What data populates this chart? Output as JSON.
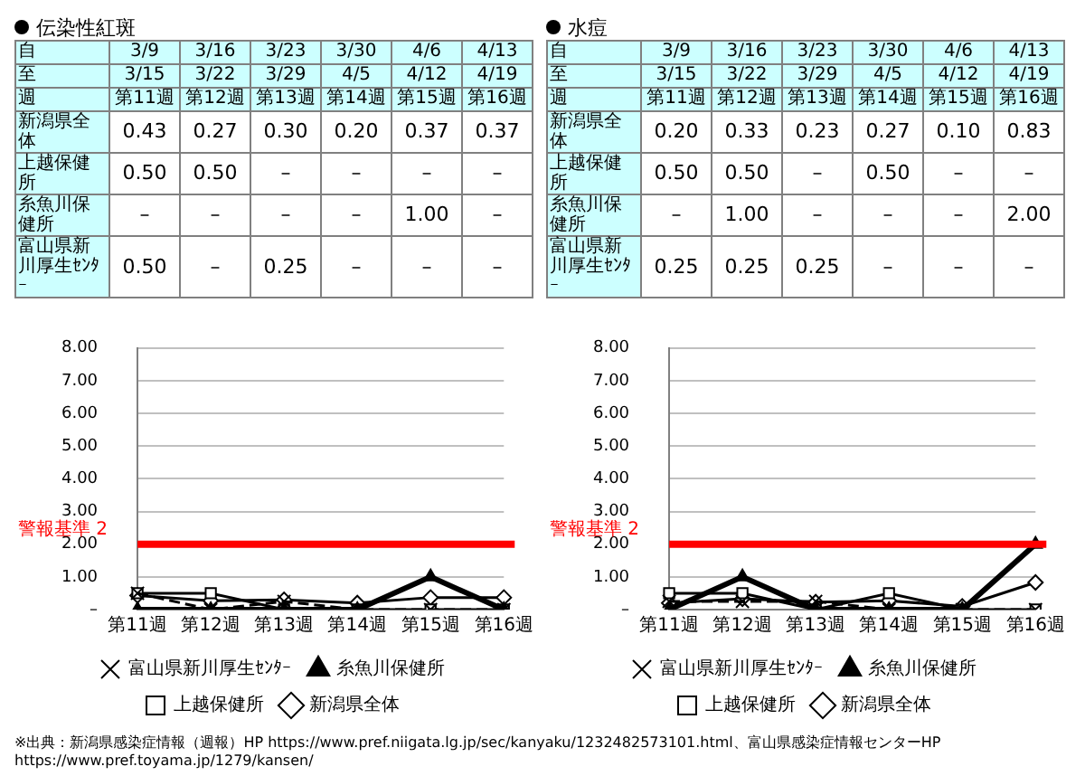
{
  "chart_data": [
    {
      "type": "line",
      "title": "伝染性紅斑",
      "categories": [
        "第11週",
        "第12週",
        "第13週",
        "第14週",
        "第15週",
        "第16週"
      ],
      "annotations": [
        "自",
        "3/9",
        "3/16",
        "3/23",
        "3/30",
        "4/6",
        "4/13",
        "至",
        "3/15",
        "3/22",
        "3/29",
        "4/5",
        "4/12",
        "4/19",
        "週",
        "第11週",
        "第12週",
        "第13週",
        "第14週",
        "第15週",
        "第16週"
      ],
      "series": [
        {
          "name": "新潟県全体",
          "color": "#000000",
          "marker": "diamond",
          "line_style": "solid",
          "values": [
            0.43,
            0.27,
            0.3,
            0.2,
            0.37,
            0.37
          ],
          "value_labels": [
            "0.43",
            "0.27",
            "0.30",
            "0.20",
            "0.37",
            "0.37"
          ]
        },
        {
          "name": "上越保健所",
          "color": "#000000",
          "marker": "square",
          "line_style": "solid",
          "values": [
            0.5,
            0.5,
            0,
            0,
            0,
            0
          ],
          "value_labels": [
            "0.50",
            "0.50",
            "–",
            "–",
            "–",
            "–"
          ]
        },
        {
          "name": "糸魚川保健所",
          "color": "#000000",
          "marker": "triangle",
          "line_style": "solid",
          "values": [
            0,
            0,
            0,
            0,
            1.0,
            0
          ],
          "value_labels": [
            "–",
            "–",
            "–",
            "–",
            "1.00",
            "–"
          ]
        },
        {
          "name": "富山県新川厚生ｾﾝﾀｰ",
          "color": "#000000",
          "marker": "cross",
          "line_style": "dashed",
          "values": [
            0.5,
            0,
            0.25,
            0,
            0,
            0
          ],
          "value_labels": [
            "0.50",
            "–",
            "0.25",
            "–",
            "–",
            "–"
          ]
        }
      ],
      "ylim": [
        0,
        8
      ],
      "yticks": [
        {
          "value": 0,
          "label": "–"
        },
        {
          "value": 1,
          "label": "1.00"
        },
        {
          "value": 2,
          "label": "2.00"
        },
        {
          "value": 3,
          "label": "3.00"
        },
        {
          "value": 4,
          "label": "4.00"
        },
        {
          "value": 5,
          "label": "5.00"
        },
        {
          "value": 6,
          "label": "6.00"
        },
        {
          "value": 7,
          "label": "7.00"
        },
        {
          "value": 8,
          "label": "8.00"
        }
      ],
      "ref_lines": [
        {
          "axis": "y",
          "value": 2,
          "label": "警報基準 2",
          "color": "#ff0000"
        }
      ],
      "grid": "y",
      "legend": "bottom"
    },
    {
      "type": "line",
      "title": "水痘",
      "categories": [
        "第11週",
        "第12週",
        "第13週",
        "第14週",
        "第15週",
        "第16週"
      ],
      "annotations": [
        "自",
        "3/9",
        "3/16",
        "3/23",
        "3/30",
        "4/6",
        "4/13",
        "至",
        "3/15",
        "3/22",
        "3/29",
        "4/5",
        "4/12",
        "4/19",
        "週",
        "第11週",
        "第12週",
        "第13週",
        "第14週",
        "第15週",
        "第16週",
        "※出典：新潟県感染症情報（週報）HP https://www.pref.niigata.lg.jp/sec/kanyaku/1232482573101.html、富山県感染症情報センターHP https://www.pref.toyama.jp/1279/kansen/"
      ],
      "series": [
        {
          "name": "新潟県全体",
          "color": "#000000",
          "marker": "diamond",
          "line_style": "solid",
          "values": [
            0.2,
            0.33,
            0.23,
            0.27,
            0.1,
            0.83
          ],
          "value_labels": [
            "0.20",
            "0.33",
            "0.23",
            "0.27",
            "0.10",
            "0.83"
          ]
        },
        {
          "name": "上越保健所",
          "color": "#000000",
          "marker": "square",
          "line_style": "solid",
          "values": [
            0.5,
            0.5,
            0,
            0.5,
            0,
            0
          ],
          "value_labels": [
            "0.50",
            "0.50",
            "–",
            "0.50",
            "–",
            "–"
          ]
        },
        {
          "name": "糸魚川保健所",
          "color": "#000000",
          "marker": "triangle",
          "line_style": "solid",
          "values": [
            0,
            1.0,
            0,
            0,
            0,
            2.0
          ],
          "value_labels": [
            "–",
            "1.00",
            "–",
            "–",
            "–",
            "2.00"
          ]
        },
        {
          "name": "富山県新川厚生ｾﾝﾀｰ",
          "color": "#000000",
          "marker": "cross",
          "line_style": "dashed",
          "values": [
            0.25,
            0.25,
            0.25,
            0,
            0,
            0
          ],
          "value_labels": [
            "0.25",
            "0.25",
            "0.25",
            "–",
            "–",
            "–"
          ]
        }
      ],
      "ylim": [
        0,
        8
      ],
      "yticks": [
        {
          "value": 0,
          "label": "–"
        },
        {
          "value": 1,
          "label": "1.00"
        },
        {
          "value": 2,
          "label": "2.00"
        },
        {
          "value": 3,
          "label": "3.00"
        },
        {
          "value": 4,
          "label": "4.00"
        },
        {
          "value": 5,
          "label": "5.00"
        },
        {
          "value": 6,
          "label": "6.00"
        },
        {
          "value": 7,
          "label": "7.00"
        },
        {
          "value": 8,
          "label": "8.00"
        }
      ],
      "ref_lines": [
        {
          "axis": "y",
          "value": 2,
          "label": "警報基準 2",
          "color": "#ff0000"
        }
      ],
      "grid": "y",
      "legend": "bottom"
    }
  ]
}
